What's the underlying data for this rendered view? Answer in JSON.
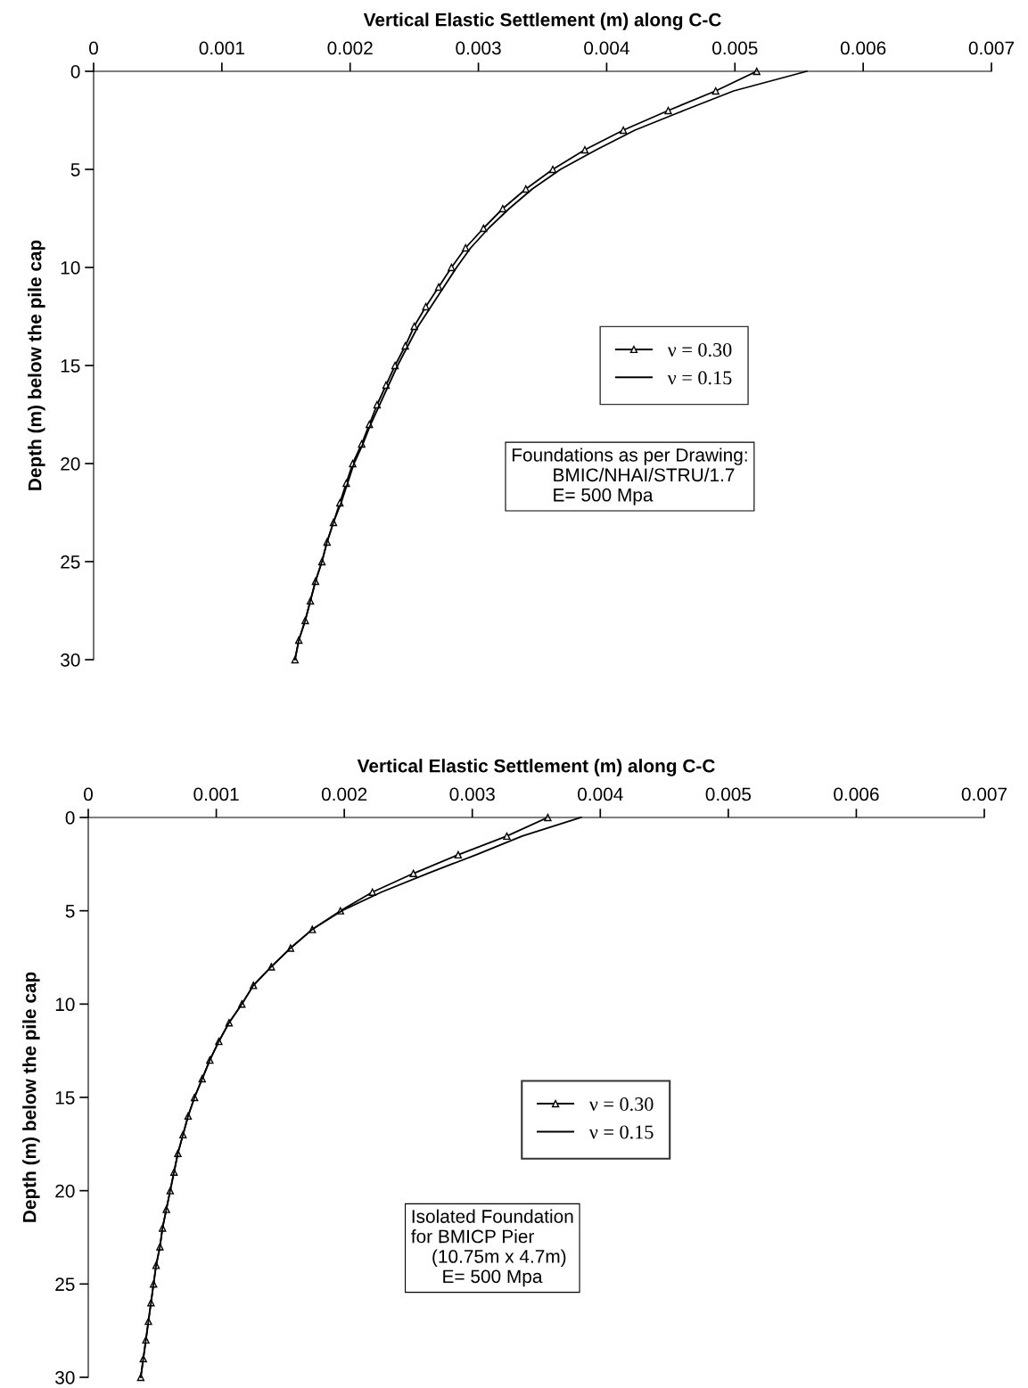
{
  "chart_data": [
    {
      "type": "line",
      "xlabel": "Vertical Elastic Settlement (m) along C-C",
      "ylabel": "Depth (m) below the pile cap",
      "xlim": [
        0,
        0.007
      ],
      "xticks": [
        0,
        0.001,
        0.002,
        0.003,
        0.004,
        0.005,
        0.006,
        0.007
      ],
      "ylim": [
        30,
        0
      ],
      "yticks": [
        0,
        5,
        10,
        15,
        20,
        25,
        30
      ],
      "grid": false,
      "legend": "right",
      "annotations": [
        "Foundations as per Drawing:\n        BMIC/NHAI/STRU/1.7\n        E= 500 Mpa"
      ],
      "series": [
        {
          "name": "ν = 0.30",
          "color": "#000000",
          "marker": "triangle",
          "x": [
            0.00517,
            0.00485,
            0.00448,
            0.00413,
            0.00383,
            0.00358,
            0.00337,
            0.00319,
            0.00304,
            0.0029,
            0.00279,
            0.00269,
            0.00259,
            0.0025,
            0.00243,
            0.00235,
            0.00228,
            0.00221,
            0.00215,
            0.00209,
            0.00202,
            0.00197,
            0.00192,
            0.00187,
            0.00182,
            0.00178,
            0.00173,
            0.00169,
            0.00165,
            0.0016,
            0.00157
          ],
          "values": [
            0,
            1,
            2,
            3,
            4,
            5,
            6,
            7,
            8,
            9,
            10,
            11,
            12,
            13,
            14,
            15,
            16,
            17,
            18,
            19,
            20,
            21,
            22,
            23,
            24,
            25,
            26,
            27,
            28,
            29,
            30
          ]
        },
        {
          "name": "ν = 0.15",
          "color": "#000000",
          "marker": "none",
          "x": [
            0.00556,
            0.00499,
            0.0046,
            0.00422,
            0.00392,
            0.00364,
            0.00342,
            0.00324,
            0.00308,
            0.00294,
            0.00283,
            0.00273,
            0.00263,
            0.00253,
            0.00245,
            0.00237,
            0.0023,
            0.00223,
            0.00216,
            0.0021,
            0.00203,
            0.00198,
            0.00193,
            0.00187,
            0.00182,
            0.00178,
            0.00173,
            0.00169,
            0.00165,
            0.0016,
            0.00157
          ],
          "values": [
            0,
            1,
            2,
            3,
            4,
            5,
            6,
            7,
            8,
            9,
            10,
            11,
            12,
            13,
            14,
            15,
            16,
            17,
            18,
            19,
            20,
            21,
            22,
            23,
            24,
            25,
            26,
            27,
            28,
            29,
            30
          ]
        }
      ]
    },
    {
      "type": "line",
      "xlabel": "Vertical Elastic Settlement (m) along C-C",
      "ylabel": "Depth (m) below the pile cap",
      "xlim": [
        0,
        0.007
      ],
      "xticks": [
        0,
        0.001,
        0.002,
        0.003,
        0.004,
        0.005,
        0.006,
        0.007
      ],
      "ylim": [
        30,
        0
      ],
      "yticks": [
        0,
        5,
        10,
        15,
        20,
        25,
        30
      ],
      "grid": false,
      "legend": "bottom",
      "annotations": [
        "Isolated Foundation\nfor BMICP Pier\n    (10.75m x 4.7m)\n      E= 500 Mpa"
      ],
      "series": [
        {
          "name": "ν = 0.30",
          "color": "#000000",
          "marker": "triangle",
          "x": [
            0.00359,
            0.00327,
            0.00289,
            0.00254,
            0.00222,
            0.00197,
            0.00175,
            0.00158,
            0.00143,
            0.00129,
            0.0012,
            0.0011,
            0.00102,
            0.00095,
            0.00089,
            0.00083,
            0.00078,
            0.00074,
            0.0007,
            0.00067,
            0.00064,
            0.00061,
            0.00058,
            0.00056,
            0.00053,
            0.00051,
            0.00049,
            0.00047,
            0.00045,
            0.00043,
            0.00041
          ],
          "values": [
            0,
            1,
            2,
            3,
            4,
            5,
            6,
            7,
            8,
            9,
            10,
            11,
            12,
            13,
            14,
            15,
            16,
            17,
            18,
            19,
            20,
            21,
            22,
            23,
            24,
            25,
            26,
            27,
            28,
            29,
            30
          ]
        },
        {
          "name": "ν = 0.15",
          "color": "#000000",
          "marker": "none",
          "x": [
            0.00385,
            0.00339,
            0.00303,
            0.00265,
            0.00229,
            0.00198,
            0.00175,
            0.00158,
            0.00143,
            0.00129,
            0.0012,
            0.0011,
            0.00102,
            0.00095,
            0.00089,
            0.00083,
            0.00078,
            0.00074,
            0.0007,
            0.00067,
            0.00064,
            0.00061,
            0.00058,
            0.00056,
            0.00053,
            0.00051,
            0.00049,
            0.00047,
            0.00045,
            0.00043,
            0.00041
          ],
          "values": [
            0,
            1,
            2,
            3,
            4,
            5,
            6,
            7,
            8,
            9,
            10,
            11,
            12,
            13,
            14,
            15,
            16,
            17,
            18,
            19,
            20,
            21,
            22,
            23,
            24,
            25,
            26,
            27,
            28,
            29,
            30
          ]
        }
      ]
    }
  ]
}
